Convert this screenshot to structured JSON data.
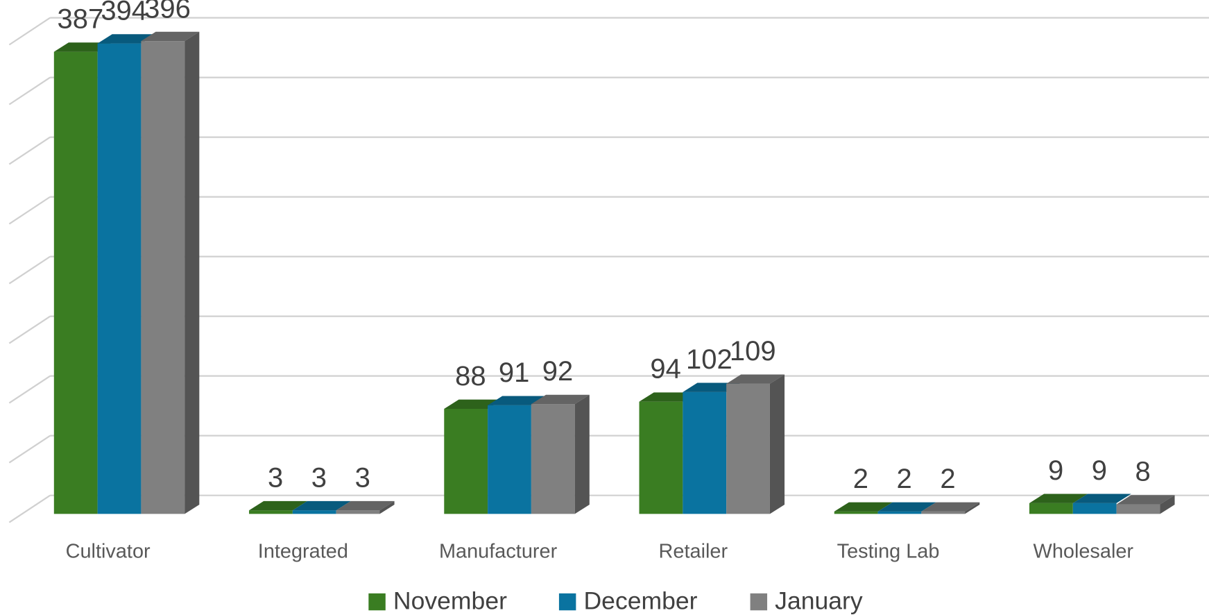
{
  "chart_data": {
    "type": "bar3d",
    "categories": [
      "Cultivator",
      "Integrated",
      "Manufacturer",
      "Retailer",
      "Testing Lab",
      "Wholesaler"
    ],
    "series": [
      {
        "name": "November",
        "color": "#3a7d22",
        "values": [
          387,
          3,
          88,
          94,
          2,
          9
        ]
      },
      {
        "name": "December",
        "color": "#0a73a0",
        "values": [
          394,
          3,
          91,
          102,
          2,
          9
        ]
      },
      {
        "name": "January",
        "color": "#808080",
        "values": [
          396,
          3,
          92,
          109,
          2,
          8
        ]
      }
    ],
    "ylim": [
      0,
      400
    ],
    "yticks": [
      0,
      50,
      100,
      150,
      200,
      250,
      300,
      350,
      400
    ],
    "grid": true,
    "legend": "bottom"
  }
}
